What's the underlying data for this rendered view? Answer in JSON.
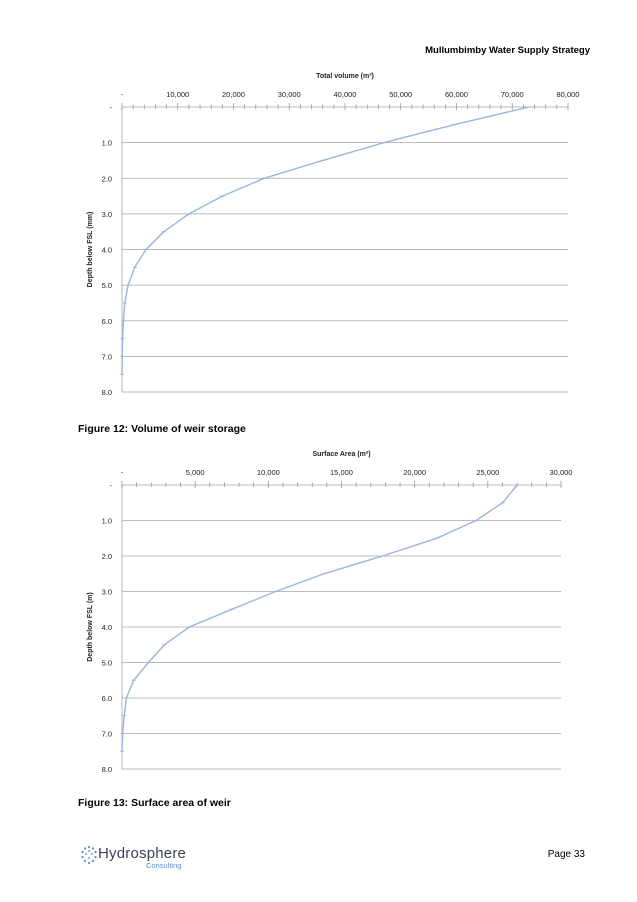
{
  "header": {
    "title": "Mullumbimby Water Supply Strategy"
  },
  "figures": [
    {
      "caption": "Figure 12: Volume of weir storage"
    },
    {
      "caption": "Figure 13: Surface area of weir"
    }
  ],
  "footer": {
    "logo_main": "Hydrosphere",
    "logo_sub": "Consulting",
    "page": "Page 33"
  },
  "colors": {
    "line": "#9db5dc",
    "grid": "#a6a6a6",
    "logo_accent": "#5a8fd8"
  },
  "icons": {
    "logo": "hydrosphere-logo-icon"
  },
  "chart_data": [
    {
      "type": "line",
      "title": "",
      "xlabel": "Total volume (m³)",
      "ylabel": "Depth below FSL (mm)",
      "xlim": [
        0,
        80000
      ],
      "ylim": [
        0,
        8
      ],
      "y_inverted": true,
      "x_axis_position": "top",
      "x_ticks": [
        0,
        10000,
        20000,
        30000,
        40000,
        50000,
        60000,
        70000,
        80000
      ],
      "x_tick_labels": [
        "-",
        "10,000",
        "20,000",
        "30,000",
        "40,000",
        "50,000",
        "60,000",
        "70,000",
        "80,000"
      ],
      "y_ticks": [
        0,
        1,
        2,
        3,
        4,
        5,
        6,
        7,
        8
      ],
      "y_tick_labels": [
        "-",
        "1.0",
        "2.0",
        "3.0",
        "4.0",
        "5.0",
        "6.0",
        "7.0",
        "8.0"
      ],
      "grid": "horizontal",
      "series": [
        {
          "x": [
            73000,
            59500,
            47000,
            36000,
            25500,
            18000,
            12000,
            7500,
            4300,
            2300,
            1100,
            500,
            250,
            100,
            50,
            0
          ],
          "y": [
            0,
            0.5,
            1.0,
            1.5,
            2.0,
            2.5,
            3.0,
            3.5,
            4.0,
            4.5,
            5.0,
            5.5,
            6.0,
            6.5,
            7.0,
            7.5
          ]
        }
      ]
    },
    {
      "type": "line",
      "title": "",
      "xlabel": "Surface Area (m²)",
      "ylabel": "Depth below FSL (m)",
      "xlim": [
        0,
        30000
      ],
      "ylim": [
        0,
        8
      ],
      "y_inverted": true,
      "x_axis_position": "top",
      "x_ticks": [
        0,
        5000,
        10000,
        15000,
        20000,
        25000,
        30000
      ],
      "x_tick_labels": [
        "-",
        "5,000",
        "10,000",
        "15,000",
        "20,000",
        "25,000",
        "30,000"
      ],
      "y_ticks": [
        0,
        1,
        2,
        3,
        4,
        5,
        6,
        7,
        8
      ],
      "y_tick_labels": [
        "-",
        "1.0",
        "2.0",
        "3.0",
        "4.0",
        "5.0",
        "6.0",
        "7.0",
        "8.0"
      ],
      "grid": "horizontal",
      "series": [
        {
          "x": [
            27000,
            26000,
            24200,
            21500,
            17800,
            13800,
            10500,
            7500,
            4600,
            2900,
            1800,
            800,
            300,
            150,
            50,
            0
          ],
          "y": [
            0,
            0.5,
            1.0,
            1.5,
            2.0,
            2.5,
            3.0,
            3.5,
            4.0,
            4.5,
            5.0,
            5.5,
            6.0,
            6.5,
            7.0,
            7.5
          ]
        }
      ]
    }
  ]
}
